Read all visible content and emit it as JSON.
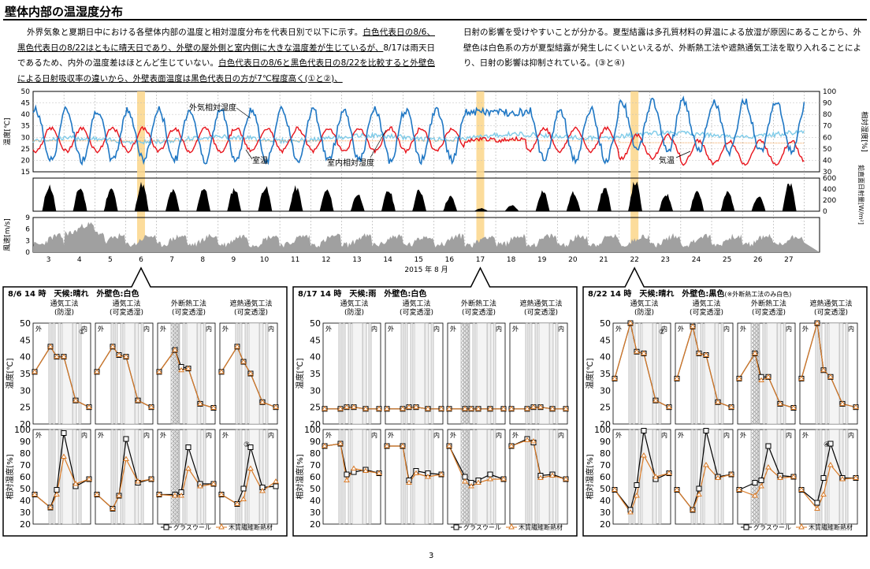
{
  "title": "壁体内部の温湿度分布",
  "paragraph_left": {
    "s1": "外界気象と夏期日中における各壁体内部の温度と相対湿度分布を代表日別で以下に示す。",
    "s2": "白色代表日の8/6、黒色代表日の8/22はともに晴天日であり、外壁の屋外側と室内側に大きな温度差が生じているが、",
    "s3": "8/17は雨天日であるため、内外の温度差はほとんど生じていない。",
    "s4": "白色代表日の8/6と黒色代表日の8/22を比較すると外壁色による日射吸収率の違いから、外壁表面温度は黒色代表日の方が7℃程度高く(①と②)、"
  },
  "paragraph_right": "日射の影響を受けやすいことが分かる。夏型結露は多孔質材料の昇温による放湿が原因にあることから、外壁色は白色系の方が夏型結露が発生しにくいといえるが、外断熱工法や遮熱通気工法を取り入れることにより、日射の影響は抑制されている。(③と④)",
  "page_number": "3",
  "chart_data": [
    {
      "type": "line",
      "id": "weather",
      "x": {
        "label": "2015 年 8 月",
        "ticks": [
          "3",
          "4",
          "5",
          "6",
          "7",
          "8",
          "9",
          "10",
          "11",
          "12",
          "13",
          "14",
          "15",
          "16",
          "17",
          "18",
          "19",
          "20",
          "21",
          "22",
          "23",
          "24",
          "25",
          "26",
          "27"
        ]
      },
      "y_left": {
        "label": "温度[℃]",
        "ylim": [
          15,
          50
        ],
        "ticks": [
          "15",
          "20",
          "25",
          "30",
          "35",
          "40",
          "45",
          "50"
        ]
      },
      "y_right": {
        "label": "相対湿度[%]",
        "ylim": [
          30,
          100
        ],
        "ticks": [
          "30",
          "40",
          "50",
          "60",
          "70",
          "80",
          "90",
          "100"
        ]
      },
      "annotations": [
        "外気相対湿度",
        "室温",
        "室内相対湿度",
        "気温"
      ],
      "highlight_days": [
        "6",
        "17",
        "22"
      ]
    },
    {
      "type": "area",
      "id": "solar",
      "y": {
        "label": "鉛直面日射量[W/m²]",
        "ylim": [
          0,
          600
        ],
        "ticks": [
          "0",
          "200",
          "400",
          "600"
        ]
      }
    },
    {
      "type": "area",
      "id": "wind",
      "y": {
        "label": "風速[m/s]",
        "ylim": [
          0,
          9
        ],
        "ticks": [
          "0",
          "3",
          "6",
          "9"
        ]
      }
    }
  ],
  "panels": [
    {
      "header": "8/6 14 時　天候:晴れ　外壁色:白色",
      "header_note": "",
      "columns": [
        "通気工法\n(防湿)",
        "通気工法\n(可変透湿)",
        "外断熱工法\n(可変透湿)",
        "遮熱通気工法\n(可変透湿)"
      ],
      "temp": [
        {
          "gw": [
            35.5,
            43,
            40,
            40,
            27,
            25
          ],
          "cf": [
            35.5,
            43,
            40,
            40,
            27,
            25
          ]
        },
        {
          "gw": [
            35.5,
            43,
            40.5,
            40,
            27,
            25
          ],
          "cf": [
            35.5,
            43,
            40.5,
            40,
            27,
            25
          ]
        },
        {
          "gw": [
            35.5,
            42,
            37,
            36.5,
            26,
            24.8
          ],
          "cf": [
            35.5,
            42,
            36,
            36.5,
            26,
            24.8
          ]
        },
        {
          "gw": [
            35.5,
            43,
            38.5,
            35,
            26.5,
            25
          ],
          "cf": [
            35.5,
            43,
            38.5,
            35,
            26.5,
            25
          ]
        }
      ],
      "rh": [
        {
          "gw": [
            45,
            34,
            49,
            97,
            52,
            58
          ],
          "cf": [
            45,
            34,
            45,
            77,
            54,
            58
          ]
        },
        {
          "gw": [
            45,
            33,
            44,
            92,
            55,
            58
          ],
          "cf": [
            45,
            33,
            44,
            75,
            56,
            58
          ]
        },
        {
          "gw": [
            45,
            45,
            47,
            85,
            54,
            54
          ],
          "cf": [
            45,
            44,
            44,
            67,
            52,
            54
          ]
        },
        {
          "gw": [
            45,
            37,
            50,
            85,
            51,
            52
          ],
          "cf": [
            45,
            37,
            41,
            67,
            48,
            56
          ]
        }
      ],
      "markers": [
        "①",
        "③"
      ]
    },
    {
      "header": "8/17 14 時　天候:雨　外壁色:白色",
      "header_note": "",
      "columns": [
        "通気工法\n(防湿)",
        "通気工法\n(可変透湿)",
        "外断熱工法\n(可変透湿)",
        "遮熱通気工法\n(可変透湿)"
      ],
      "temp": [
        {
          "gw": [
            24.5,
            24.5,
            25,
            25,
            24.5,
            24.5
          ],
          "cf": [
            24.5,
            24.5,
            25,
            25,
            24.5,
            24.5
          ]
        },
        {
          "gw": [
            24.5,
            24.5,
            25,
            25,
            24.5,
            24.5
          ],
          "cf": [
            24.5,
            24.5,
            25,
            25,
            24.5,
            24.5
          ]
        },
        {
          "gw": [
            24.5,
            24.5,
            24.5,
            24.5,
            24.5,
            24.5
          ],
          "cf": [
            24.5,
            24.5,
            24.5,
            24.5,
            24.5,
            24.5
          ]
        },
        {
          "gw": [
            24.5,
            24.5,
            25,
            25,
            24.5,
            24.5
          ],
          "cf": [
            24.5,
            24.5,
            25,
            25,
            24.5,
            24.5
          ]
        }
      ],
      "rh": [
        {
          "gw": [
            86,
            88,
            62,
            64,
            66,
            63
          ],
          "cf": [
            86,
            88,
            57,
            67,
            65,
            63
          ]
        },
        {
          "gw": [
            86,
            86,
            57,
            65,
            63,
            62
          ],
          "cf": [
            86,
            86,
            55,
            63,
            60,
            62
          ]
        },
        {
          "gw": [
            86,
            60,
            55,
            57,
            62,
            58
          ],
          "cf": [
            86,
            56,
            52,
            55,
            58,
            58
          ]
        },
        {
          "gw": [
            86,
            92,
            89,
            61,
            62,
            58
          ],
          "cf": [
            86,
            91,
            90,
            59,
            61,
            58
          ]
        }
      ],
      "markers": []
    },
    {
      "header": "8/22 14 時　天候:晴れ　外壁色:黒色",
      "header_note": "(※外断熱工法のみ白色)",
      "columns": [
        "通気工法\n(防湿)",
        "通気工法\n(可変透湿)",
        "外断熱工法\n(可変透湿)",
        "遮熱通気工法\n(可変透湿)"
      ],
      "temp": [
        {
          "gw": [
            33.5,
            50,
            41.5,
            41,
            27,
            25
          ],
          "cf": [
            33.5,
            50,
            41.5,
            41,
            27,
            25
          ]
        },
        {
          "gw": [
            33.5,
            49,
            41,
            40.5,
            26.5,
            25
          ],
          "cf": [
            33.5,
            49,
            41,
            40.5,
            26.5,
            25
          ]
        },
        {
          "gw": [
            33.5,
            41,
            34,
            34,
            26,
            24.8
          ],
          "cf": [
            33.5,
            41,
            33,
            34,
            26,
            24.8
          ]
        },
        {
          "gw": [
            33.5,
            50,
            36,
            34,
            26,
            25
          ],
          "cf": [
            33.5,
            50,
            36,
            34,
            26,
            25
          ]
        }
      ],
      "rh": [
        {
          "gw": [
            49,
            32,
            53,
            99,
            58,
            63
          ],
          "cf": [
            49,
            30,
            44,
            78,
            60,
            63
          ]
        },
        {
          "gw": [
            49,
            32,
            50,
            99,
            60,
            62
          ],
          "cf": [
            49,
            32,
            45,
            70,
            59,
            62
          ]
        },
        {
          "gw": [
            49,
            55,
            57,
            86,
            61,
            60
          ],
          "cf": [
            49,
            44,
            52,
            68,
            59,
            60
          ]
        },
        {
          "gw": [
            49,
            38,
            59,
            88,
            59,
            59
          ],
          "cf": [
            49,
            33,
            45,
            70,
            58,
            59
          ]
        }
      ],
      "markers": [
        "②",
        "④"
      ]
    }
  ],
  "panel_axes": {
    "temp_label": "温度[℃]",
    "temp_ticks": [
      "20",
      "25",
      "30",
      "35",
      "40",
      "45",
      "50"
    ],
    "rh_label": "相対湿度[%]",
    "rh_ticks": [
      "20",
      "30",
      "40",
      "50",
      "60",
      "70",
      "80",
      "90",
      "100"
    ],
    "out_label": "外",
    "in_label": "内"
  },
  "legend": {
    "gw": "グラスウール",
    "cf": "木質繊維断熱材"
  },
  "colors": {
    "outdoor_rh": "#1f77c4",
    "indoor_rh": "#7fcbe8",
    "outdoor_temp": "#e8141c",
    "room_temp": "#f0a050",
    "highlight": "#fcd890",
    "cf": "#d97a26",
    "gw": "#000000",
    "area": "#a0a0a0"
  }
}
